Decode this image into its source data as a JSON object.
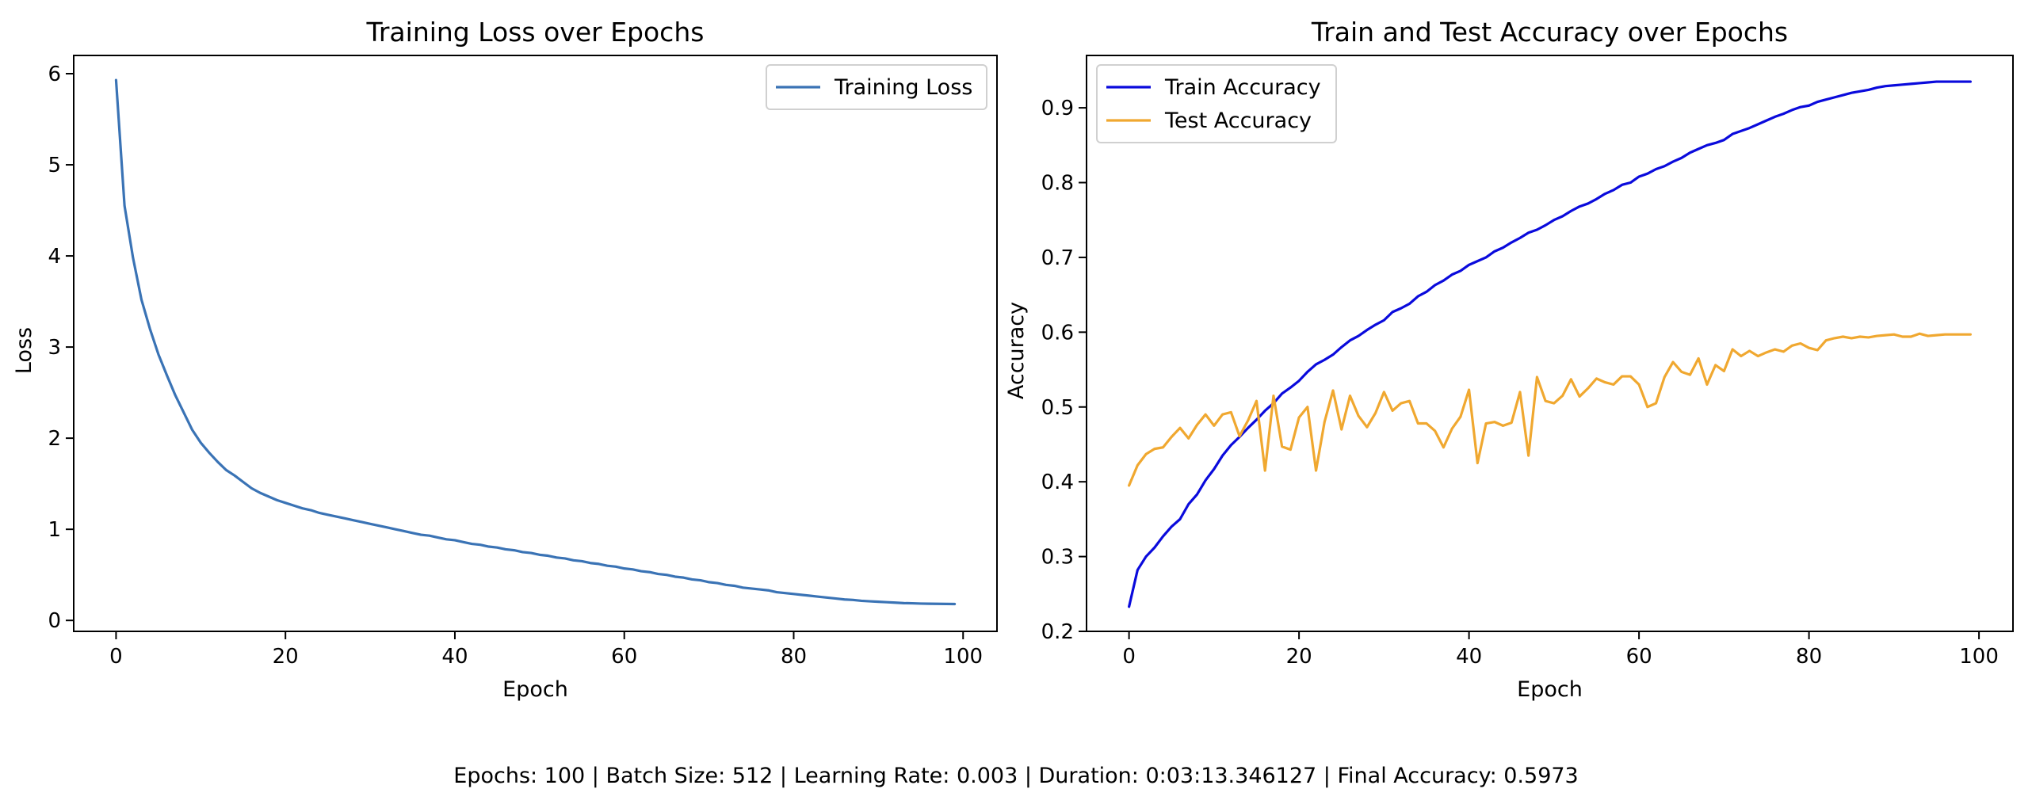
{
  "chart_data": [
    {
      "type": "line",
      "title": "Training Loss over Epochs",
      "xlabel": "Epoch",
      "ylabel": "Loss",
      "xlim": [
        -5,
        104
      ],
      "ylim": [
        -0.12,
        6.2
      ],
      "xticks": [
        0,
        20,
        40,
        60,
        80,
        100
      ],
      "yticks": [
        0,
        1,
        2,
        3,
        4,
        5,
        6
      ],
      "grid": false,
      "legend": "top-right",
      "series": [
        {
          "name": "Training Loss",
          "color": "#3a73b5",
          "x": [
            0,
            1,
            2,
            3,
            4,
            5,
            6,
            7,
            8,
            9,
            10,
            11,
            12,
            13,
            14,
            15,
            16,
            17,
            18,
            19,
            20,
            21,
            22,
            23,
            24,
            25,
            26,
            27,
            28,
            29,
            30,
            31,
            32,
            33,
            34,
            35,
            36,
            37,
            38,
            39,
            40,
            41,
            42,
            43,
            44,
            45,
            46,
            47,
            48,
            49,
            50,
            51,
            52,
            53,
            54,
            55,
            56,
            57,
            58,
            59,
            60,
            61,
            62,
            63,
            64,
            65,
            66,
            67,
            68,
            69,
            70,
            71,
            72,
            73,
            74,
            75,
            76,
            77,
            78,
            79,
            80,
            81,
            82,
            83,
            84,
            85,
            86,
            87,
            88,
            89,
            90,
            91,
            92,
            93,
            94,
            95,
            96,
            97,
            98,
            99
          ],
          "values": [
            5.93,
            4.55,
            3.98,
            3.52,
            3.2,
            2.92,
            2.69,
            2.47,
            2.28,
            2.09,
            1.95,
            1.84,
            1.74,
            1.65,
            1.59,
            1.52,
            1.45,
            1.4,
            1.36,
            1.32,
            1.29,
            1.26,
            1.23,
            1.21,
            1.18,
            1.16,
            1.14,
            1.12,
            1.1,
            1.08,
            1.06,
            1.04,
            1.02,
            1.0,
            0.98,
            0.96,
            0.94,
            0.93,
            0.91,
            0.89,
            0.88,
            0.86,
            0.84,
            0.83,
            0.81,
            0.8,
            0.78,
            0.77,
            0.75,
            0.74,
            0.72,
            0.71,
            0.69,
            0.68,
            0.66,
            0.65,
            0.63,
            0.62,
            0.6,
            0.59,
            0.57,
            0.56,
            0.54,
            0.53,
            0.51,
            0.5,
            0.48,
            0.47,
            0.45,
            0.44,
            0.42,
            0.41,
            0.39,
            0.38,
            0.36,
            0.35,
            0.34,
            0.33,
            0.31,
            0.3,
            0.29,
            0.28,
            0.27,
            0.26,
            0.25,
            0.24,
            0.23,
            0.225,
            0.215,
            0.21,
            0.205,
            0.2,
            0.195,
            0.19,
            0.188,
            0.185,
            0.183,
            0.182,
            0.181,
            0.18
          ]
        }
      ]
    },
    {
      "type": "line",
      "title": "Train and Test Accuracy over Epochs",
      "xlabel": "Epoch",
      "ylabel": "Accuracy",
      "xlim": [
        -5,
        104
      ],
      "ylim": [
        0.2,
        0.97
      ],
      "xticks": [
        0,
        20,
        40,
        60,
        80,
        100
      ],
      "yticks": [
        0.2,
        0.3,
        0.4,
        0.5,
        0.6,
        0.7,
        0.8,
        0.9
      ],
      "grid": false,
      "legend": "top-left",
      "series": [
        {
          "name": "Train Accuracy",
          "color": "#0a0adc",
          "x": [
            0,
            1,
            2,
            3,
            4,
            5,
            6,
            7,
            8,
            9,
            10,
            11,
            12,
            13,
            14,
            15,
            16,
            17,
            18,
            19,
            20,
            21,
            22,
            23,
            24,
            25,
            26,
            27,
            28,
            29,
            30,
            31,
            32,
            33,
            34,
            35,
            36,
            37,
            38,
            39,
            40,
            41,
            42,
            43,
            44,
            45,
            46,
            47,
            48,
            49,
            50,
            51,
            52,
            53,
            54,
            55,
            56,
            57,
            58,
            59,
            60,
            61,
            62,
            63,
            64,
            65,
            66,
            67,
            68,
            69,
            70,
            71,
            72,
            73,
            74,
            75,
            76,
            77,
            78,
            79,
            80,
            81,
            82,
            83,
            84,
            85,
            86,
            87,
            88,
            89,
            90,
            91,
            92,
            93,
            94,
            95,
            96,
            97,
            98,
            99
          ],
          "values": [
            0.233,
            0.282,
            0.3,
            0.312,
            0.327,
            0.34,
            0.35,
            0.37,
            0.383,
            0.402,
            0.417,
            0.435,
            0.449,
            0.46,
            0.472,
            0.483,
            0.495,
            0.505,
            0.518,
            0.526,
            0.535,
            0.547,
            0.557,
            0.563,
            0.57,
            0.58,
            0.589,
            0.595,
            0.603,
            0.61,
            0.616,
            0.627,
            0.632,
            0.638,
            0.648,
            0.654,
            0.663,
            0.669,
            0.677,
            0.682,
            0.69,
            0.695,
            0.7,
            0.708,
            0.713,
            0.72,
            0.726,
            0.733,
            0.737,
            0.743,
            0.75,
            0.755,
            0.762,
            0.768,
            0.772,
            0.778,
            0.785,
            0.79,
            0.797,
            0.8,
            0.808,
            0.812,
            0.818,
            0.822,
            0.828,
            0.833,
            0.84,
            0.845,
            0.85,
            0.853,
            0.857,
            0.865,
            0.869,
            0.873,
            0.878,
            0.883,
            0.888,
            0.892,
            0.897,
            0.901,
            0.903,
            0.908,
            0.911,
            0.914,
            0.917,
            0.92,
            0.922,
            0.924,
            0.927,
            0.929,
            0.93,
            0.931,
            0.932,
            0.933,
            0.934,
            0.935,
            0.935,
            0.935,
            0.935,
            0.935
          ]
        },
        {
          "name": "Test Accuracy",
          "color": "#f0a830",
          "x": [
            0,
            1,
            2,
            3,
            4,
            5,
            6,
            7,
            8,
            9,
            10,
            11,
            12,
            13,
            14,
            15,
            16,
            17,
            18,
            19,
            20,
            21,
            22,
            23,
            24,
            25,
            26,
            27,
            28,
            29,
            30,
            31,
            32,
            33,
            34,
            35,
            36,
            37,
            38,
            39,
            40,
            41,
            42,
            43,
            44,
            45,
            46,
            47,
            48,
            49,
            50,
            51,
            52,
            53,
            54,
            55,
            56,
            57,
            58,
            59,
            60,
            61,
            62,
            63,
            64,
            65,
            66,
            67,
            68,
            69,
            70,
            71,
            72,
            73,
            74,
            75,
            76,
            77,
            78,
            79,
            80,
            81,
            82,
            83,
            84,
            85,
            86,
            87,
            88,
            89,
            90,
            91,
            92,
            93,
            94,
            95,
            96,
            97,
            98,
            99
          ],
          "values": [
            0.395,
            0.422,
            0.437,
            0.444,
            0.446,
            0.46,
            0.472,
            0.458,
            0.476,
            0.49,
            0.475,
            0.49,
            0.493,
            0.461,
            0.482,
            0.508,
            0.415,
            0.515,
            0.447,
            0.443,
            0.486,
            0.5,
            0.415,
            0.48,
            0.522,
            0.47,
            0.515,
            0.488,
            0.473,
            0.492,
            0.52,
            0.495,
            0.505,
            0.508,
            0.478,
            0.478,
            0.468,
            0.446,
            0.471,
            0.487,
            0.523,
            0.425,
            0.478,
            0.48,
            0.475,
            0.479,
            0.52,
            0.435,
            0.54,
            0.508,
            0.505,
            0.515,
            0.537,
            0.514,
            0.525,
            0.538,
            0.533,
            0.53,
            0.541,
            0.541,
            0.53,
            0.5,
            0.505,
            0.54,
            0.56,
            0.547,
            0.543,
            0.565,
            0.53,
            0.556,
            0.548,
            0.577,
            0.568,
            0.575,
            0.568,
            0.573,
            0.577,
            0.574,
            0.582,
            0.585,
            0.579,
            0.576,
            0.589,
            0.592,
            0.594,
            0.592,
            0.594,
            0.593,
            0.595,
            0.596,
            0.597,
            0.594,
            0.594,
            0.598,
            0.595,
            0.596,
            0.597,
            0.597,
            0.597,
            0.597
          ]
        }
      ]
    }
  ],
  "footer": "Epochs: 100 | Batch Size: 512 | Learning Rate: 0.003 | Duration: 0:03:13.346127 | Final Accuracy: 0.5973"
}
